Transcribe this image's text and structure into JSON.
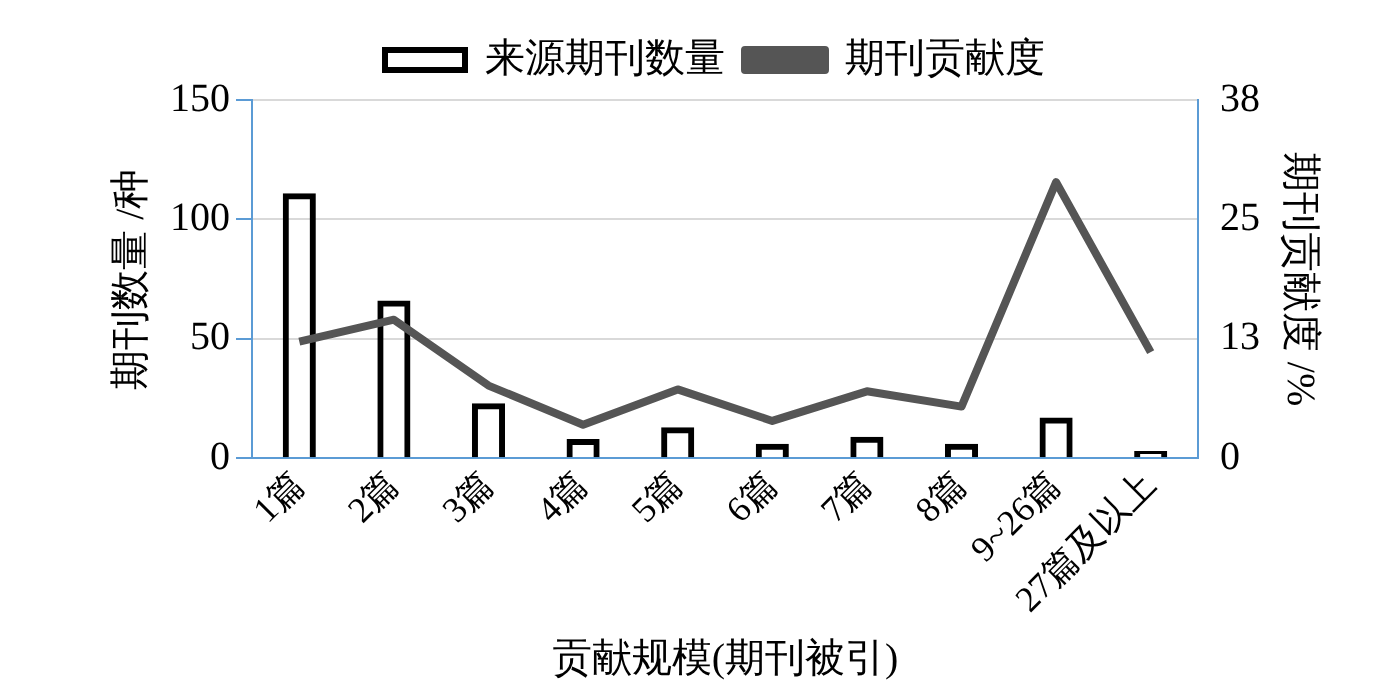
{
  "chart_data": {
    "type": "bar",
    "xlabel": "贡献规模(期刊被引)",
    "ylabel": "期刊数量 /种",
    "y2label": "期刊贡献度 /%",
    "categories": [
      "1篇",
      "2篇",
      "3篇",
      "4篇",
      "5篇",
      "6篇",
      "7篇",
      "8篇",
      "9~26篇",
      "27篇及以上"
    ],
    "series": [
      {
        "name": "来源期刊数量",
        "color": "#000000",
        "values": [
          111,
          66,
          23,
          8,
          13,
          6,
          9,
          6,
          17,
          3
        ]
      },
      {
        "name": "期刊贡献度",
        "type": "line",
        "axis": "y2",
        "color": "#555555",
        "values": [
          12.2,
          14.5,
          7.6,
          3.5,
          7.2,
          3.9,
          7.0,
          5.4,
          28.9,
          11.1
        ]
      }
    ],
    "ylim": [
      0,
      150
    ],
    "yticks": [
      0,
      50,
      100,
      150
    ],
    "y2lim": [
      0,
      37.5
    ],
    "y2ticks": [
      0,
      {
        "value": 12.5,
        "label": "13"
      },
      25,
      {
        "value": 37.5,
        "label": "38"
      }
    ],
    "grid": "y",
    "legend": "top",
    "marker": "none"
  }
}
